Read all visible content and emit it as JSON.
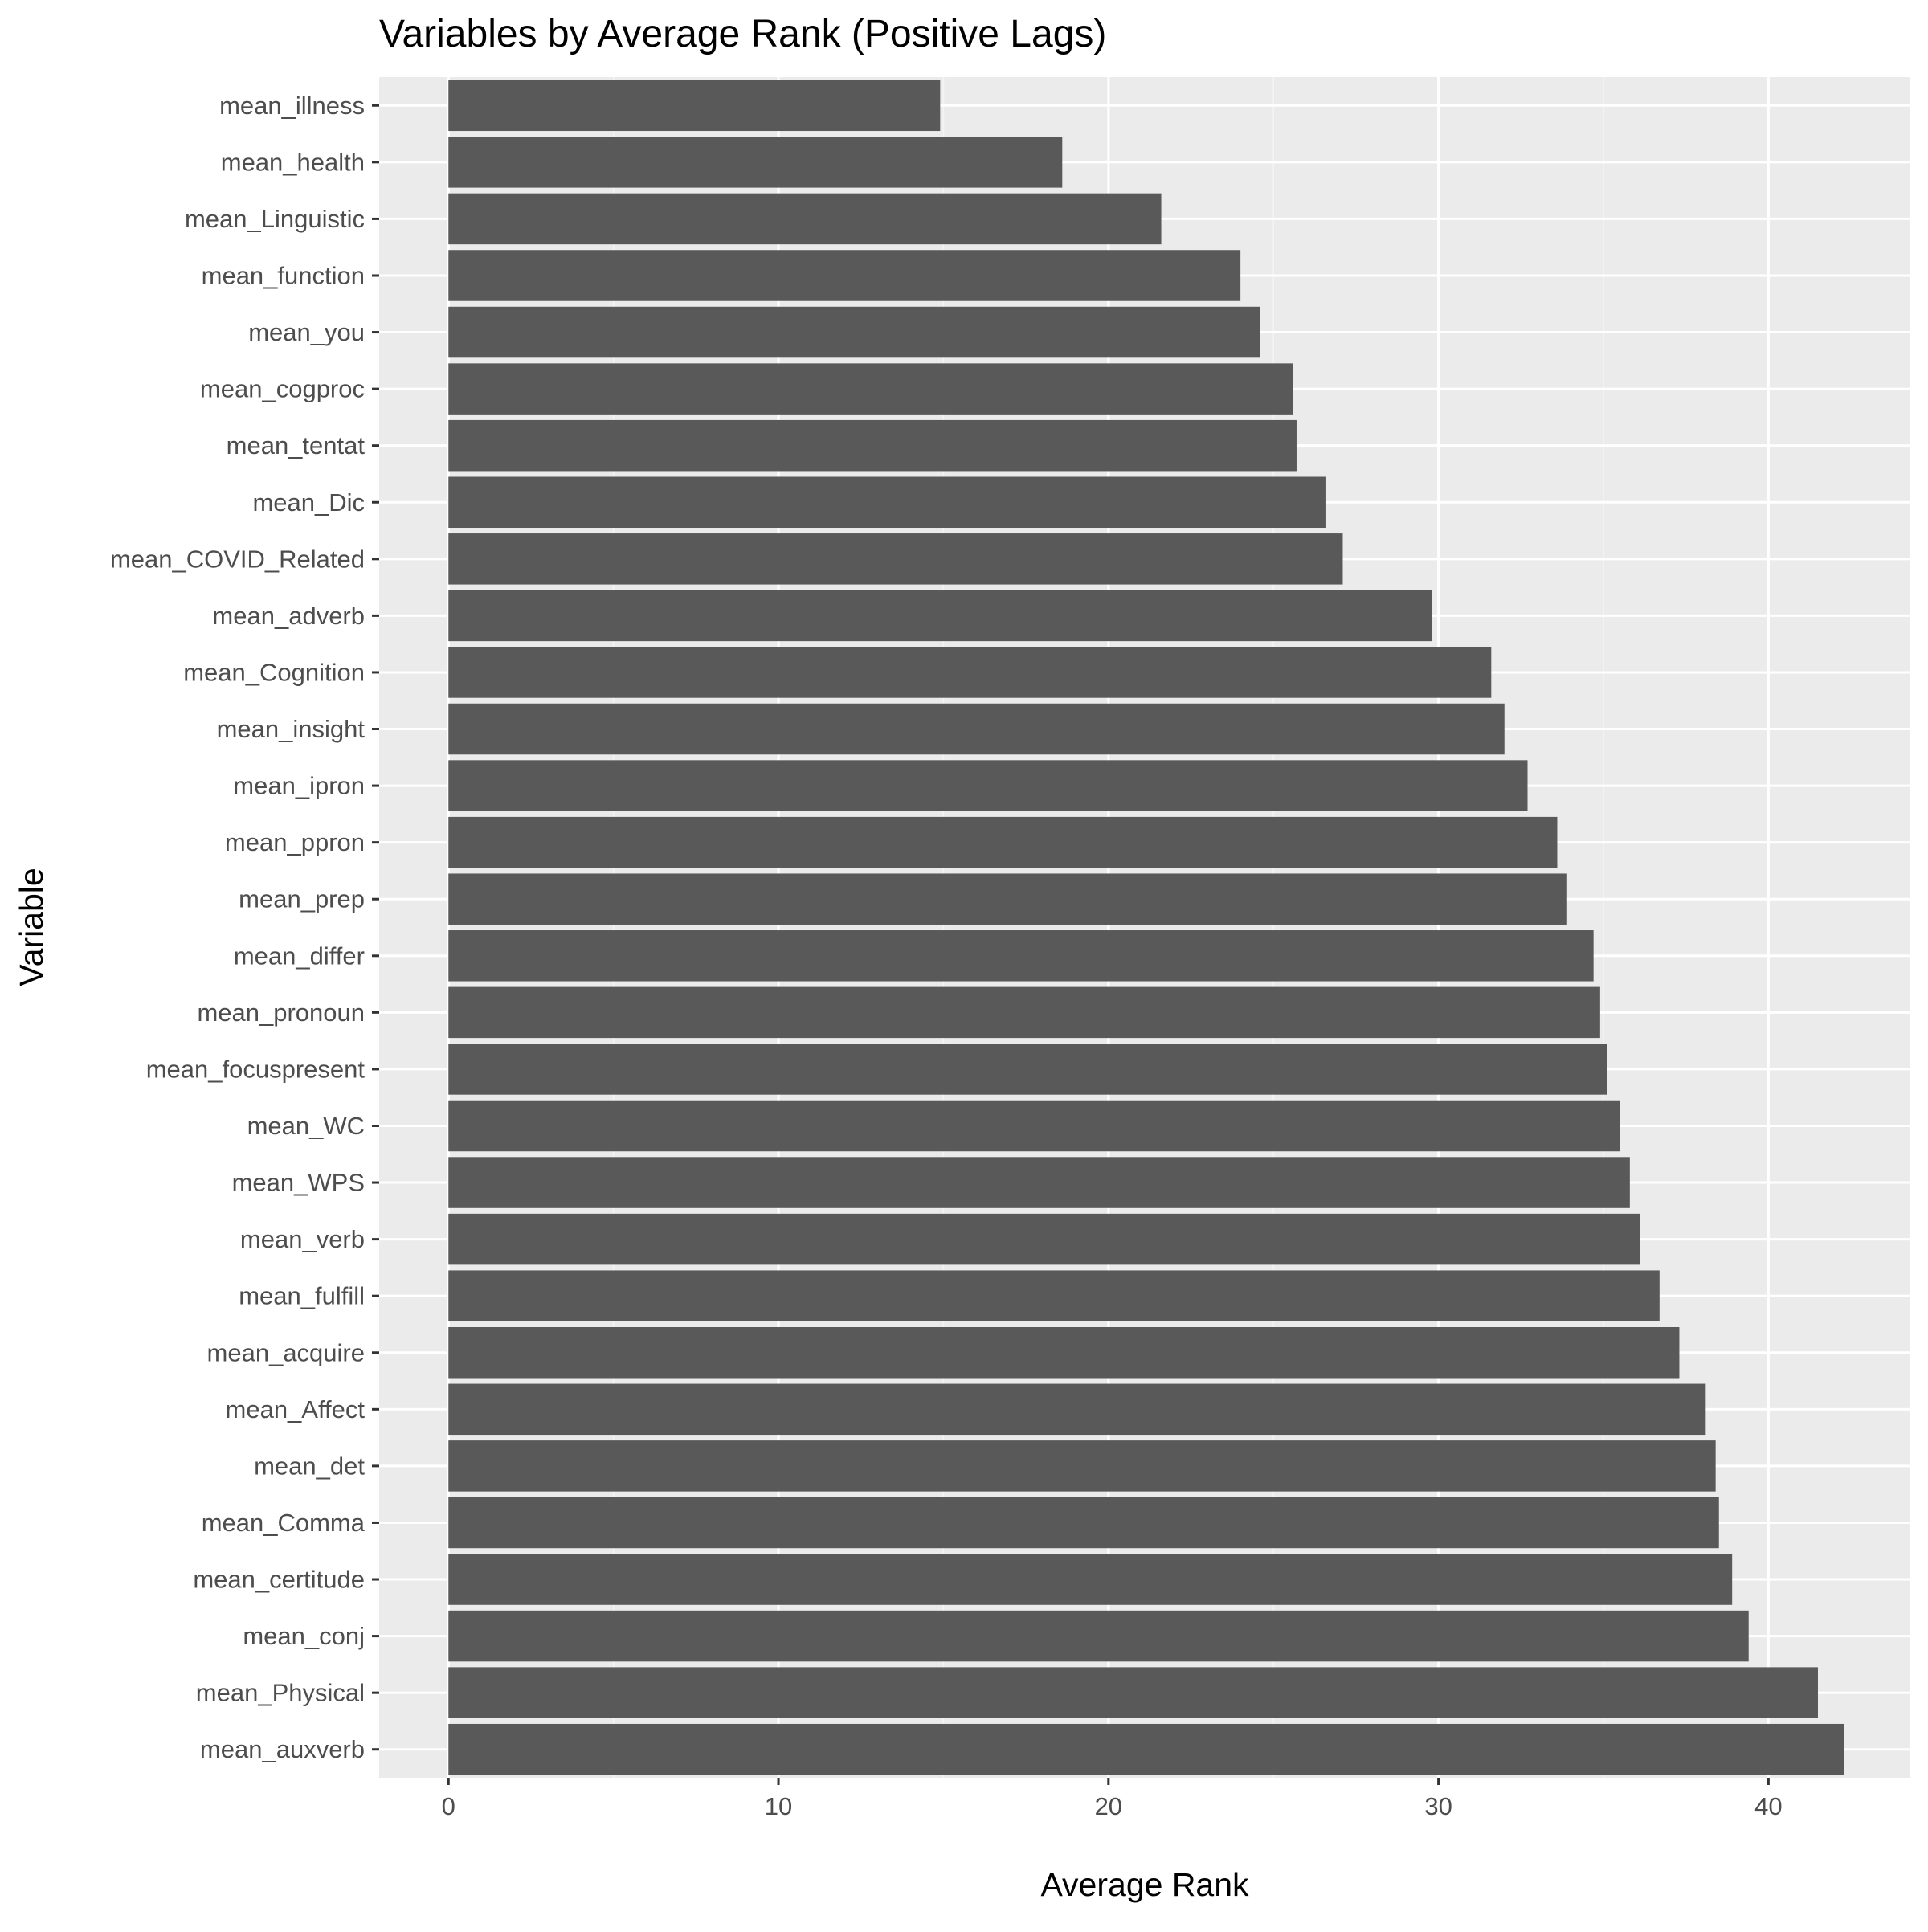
{
  "chart_data": {
    "type": "bar",
    "orientation": "horizontal",
    "title": "Variables by Average Rank (Positive Lags)",
    "xlabel": "Average Rank",
    "ylabel": "Variable",
    "xlim": [
      -2.1,
      44.3
    ],
    "xticks": [
      0,
      10,
      20,
      30,
      40
    ],
    "grid": true,
    "legend": "none",
    "colors": {
      "bar": "#595959",
      "panel": "#ebebeb",
      "grid_major": "#ffffff",
      "grid_minor": "#f4f4f4",
      "tick_text": "#4d4d4d",
      "title_text": "#000000"
    },
    "categories": [
      "mean_illness",
      "mean_health",
      "mean_Linguistic",
      "mean_function",
      "mean_you",
      "mean_cogproc",
      "mean_tentat",
      "mean_Dic",
      "mean_COVID_Related",
      "mean_adverb",
      "mean_Cognition",
      "mean_insight",
      "mean_ipron",
      "mean_ppron",
      "mean_prep",
      "mean_differ",
      "mean_pronoun",
      "mean_focuspresent",
      "mean_WC",
      "mean_WPS",
      "mean_verb",
      "mean_fulfill",
      "mean_acquire",
      "mean_Affect",
      "mean_det",
      "mean_Comma",
      "mean_certitude",
      "mean_conj",
      "mean_Physical",
      "mean_auxverb"
    ],
    "values": [
      14.9,
      18.6,
      21.6,
      24.0,
      24.6,
      25.6,
      25.7,
      26.6,
      27.1,
      29.8,
      31.6,
      32.0,
      32.7,
      33.6,
      33.9,
      34.7,
      34.9,
      35.1,
      35.5,
      35.8,
      36.1,
      36.7,
      37.3,
      38.1,
      38.4,
      38.5,
      38.9,
      39.4,
      41.5,
      42.3
    ]
  }
}
